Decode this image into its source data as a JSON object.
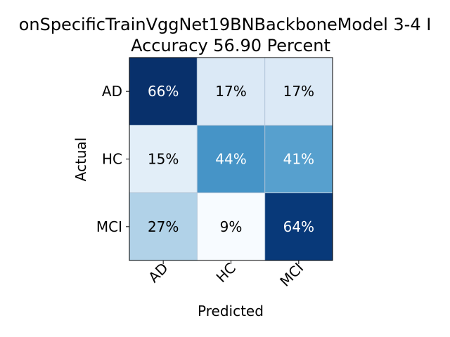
{
  "chart_data": {
    "type": "heatmap",
    "title_line1": "onSpecificTrainVggNet19BNBackboneModel 3-4 I",
    "title_line2": "Accuracy 56.90 Percent",
    "xlabel": "Predicted",
    "ylabel": "Actual",
    "x_categories": [
      "AD",
      "HC",
      "MCI"
    ],
    "y_categories": [
      "AD",
      "HC",
      "MCI"
    ],
    "values": [
      [
        66,
        17,
        17
      ],
      [
        15,
        44,
        41
      ],
      [
        27,
        9,
        64
      ]
    ],
    "value_suffix": "%",
    "colormap": "Blues",
    "colors": {
      "low": "#f7fbff",
      "mid": "#6baed6",
      "high": "#08306b",
      "text_dark": "#000000",
      "text_light": "#ffffff"
    }
  }
}
